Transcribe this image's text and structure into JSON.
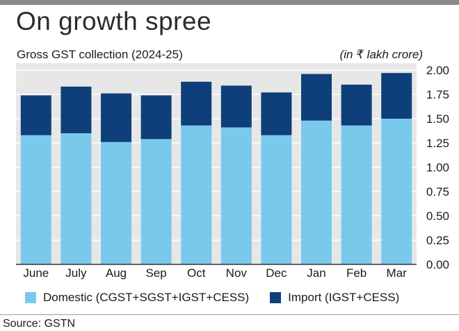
{
  "title": "On growth spree",
  "subtitle": "Gross GST collection (2024-25)",
  "unit": "(in ₹ lakh crore)",
  "source": "Source: GSTN",
  "colors": {
    "domestic": "#79c9ec",
    "import": "#0e3f7a"
  },
  "chart_data": {
    "type": "bar",
    "stacked": true,
    "categories": [
      "June",
      "July",
      "Aug",
      "Sep",
      "Oct",
      "Nov",
      "Dec",
      "Jan",
      "Feb",
      "Mar"
    ],
    "series": [
      {
        "name": "Domestic (CGST+SGST+IGST+CESS)",
        "values": [
          1.33,
          1.35,
          1.26,
          1.29,
          1.43,
          1.41,
          1.33,
          1.48,
          1.43,
          1.5
        ]
      },
      {
        "name": "Import (IGST+CESS)",
        "values": [
          0.41,
          0.48,
          0.5,
          0.45,
          0.45,
          0.43,
          0.44,
          0.48,
          0.42,
          0.47
        ]
      }
    ],
    "title": "On growth spree",
    "ylim": [
      0,
      2.0
    ],
    "yticks": [
      "0.00",
      "0.25",
      "0.50",
      "0.75",
      "1.00",
      "1.25",
      "1.50",
      "1.75",
      "2.00"
    ],
    "grid": true,
    "legend": "bottom"
  }
}
